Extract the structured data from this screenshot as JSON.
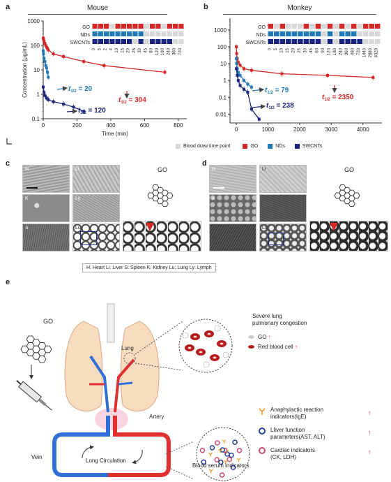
{
  "panels": {
    "a": {
      "label": "a",
      "title": "Mouse"
    },
    "b": {
      "label": "b",
      "title": "Monkey"
    },
    "c": {
      "label": "c"
    },
    "d": {
      "label": "d"
    },
    "e": {
      "label": "e"
    }
  },
  "chart_data": [
    {
      "type": "scatter",
      "panel": "a",
      "title": "Mouse",
      "xlabel": "Time (min)",
      "ylabel": "Concentration (μg/mL)",
      "xlim": [
        0,
        850
      ],
      "ylim": [
        0.1,
        1000
      ],
      "yscale": "log",
      "xticks": [
        "0",
        "200",
        "400",
        "600",
        "800"
      ],
      "yticks": [
        "0.1",
        "1",
        "10",
        "100",
        "1000"
      ],
      "series": [
        {
          "name": "GO",
          "color": "#d62728",
          "x": [
            0,
            2,
            5,
            10,
            15,
            20,
            25,
            30,
            60,
            120,
            240,
            360,
            720
          ],
          "y": [
            200,
            180,
            150,
            120,
            100,
            85,
            75,
            65,
            45,
            35,
            22,
            15,
            8
          ]
        },
        {
          "name": "NDs",
          "color": "#1f77b4",
          "x": [
            0,
            2,
            5,
            10,
            15,
            20,
            25,
            30
          ],
          "y": [
            60,
            45,
            30,
            22,
            15,
            12,
            8,
            5
          ]
        },
        {
          "name": "SWCNTs",
          "color": "#1a237e",
          "x": [
            0,
            5,
            10,
            20,
            30,
            60,
            120,
            180,
            240
          ],
          "y": [
            2,
            1.2,
            0.9,
            0.7,
            0.6,
            0.5,
            0.4,
            0.3,
            0.2
          ]
        }
      ],
      "annotations": [
        {
          "prefix": "t",
          "sub": "1/2",
          "text": " = 20",
          "color": "#1f77b4"
        },
        {
          "prefix": "t",
          "sub": "1/2",
          "text": " = 304",
          "color": "#d62728"
        },
        {
          "prefix": "t",
          "sub": "1/2",
          "text": " = 120",
          "color": "#1a237e"
        }
      ],
      "draw_times": [
        "0",
        "5",
        "2",
        "4",
        "10",
        "15",
        "20",
        "25",
        "30",
        "45",
        "60",
        "120",
        "180",
        "240",
        "360",
        "720"
      ],
      "rows": [
        "GO",
        "NDs",
        "SWCNTs"
      ]
    },
    {
      "type": "scatter",
      "panel": "b",
      "title": "Monkey",
      "xlim": [
        -200,
        4600
      ],
      "ylim": [
        0.003,
        5000
      ],
      "yscale": "log",
      "xticks": [
        "0",
        "1000",
        "2000",
        "3000",
        "4000"
      ],
      "yticks": [
        "0.01",
        "0.1",
        "1",
        "10",
        "100",
        "1000"
      ],
      "series": [
        {
          "name": "GO",
          "color": "#d62728",
          "x": [
            0,
            10,
            30,
            60,
            120,
            240,
            480,
            1440,
            2880,
            4320
          ],
          "y": [
            100,
            40,
            20,
            12,
            8,
            5,
            4,
            2.5,
            2,
            1.5
          ]
        },
        {
          "name": "NDs",
          "color": "#1f77b4",
          "x": [
            0,
            10,
            30,
            60,
            120,
            240,
            360,
            480
          ],
          "y": [
            20,
            10,
            5,
            3,
            2,
            1,
            0.6,
            0.4
          ]
        },
        {
          "name": "SWCNTs",
          "color": "#1a237e",
          "x": [
            0,
            30,
            60,
            120,
            240,
            360,
            480,
            720
          ],
          "y": [
            5,
            2,
            1,
            0.5,
            0.3,
            0.2,
            0.02,
            0.005
          ]
        }
      ],
      "annotations": [
        {
          "prefix": "t",
          "sub": "1/2",
          "text": " = 79",
          "color": "#1f77b4"
        },
        {
          "prefix": "t",
          "sub": "1/2",
          "text": " = 238",
          "color": "#1a237e"
        },
        {
          "prefix": "t",
          "sub": "1/2",
          "text": " = 2350",
          "color": "#d62728"
        }
      ],
      "draw_times": [
        "0",
        "5",
        "10",
        "15",
        "20",
        "25",
        "30",
        "45",
        "60",
        "90",
        "120",
        "180",
        "240",
        "360",
        "480",
        "720",
        "1440",
        "2880",
        "4320"
      ],
      "rows": [
        "GO",
        "NDs",
        "SWCNTs"
      ]
    }
  ],
  "legend": {
    "blood_draw": "Blood draw time point",
    "go": "GO",
    "nds": "NDs",
    "swcnts": "SWCNTs"
  },
  "micro_c": {
    "labels": [
      "H",
      "Li",
      "K",
      "Ly",
      "S",
      "Lu"
    ],
    "go_label": "GO"
  },
  "micro_d": {
    "labels": [
      "H",
      "Li",
      "K",
      "",
      "",
      "Lu"
    ],
    "go_label": "GO"
  },
  "organ_key": "H: Heart   Li: Liver   S: Spleen   K: Kidney   Lu: Lung   Ly: Lymph",
  "diagram": {
    "go_label": "GO",
    "lung_label": "Lung",
    "artery_label": "Artery",
    "vein_label": "Vein",
    "circulation_label": "Long Circulation",
    "lung_title": "Severe lung\npulmonary congestion",
    "lung_items": [
      {
        "text": "GO",
        "arrow": "↑"
      },
      {
        "text": "Red blood cell",
        "arrow": "↑"
      }
    ],
    "serum_items": [
      {
        "text": "Anaphylactic reaction\nindicators(IgE)",
        "arrow": "↑",
        "color": "#e8a020"
      },
      {
        "text": "Lliver function\nparameters(AST, ALT)",
        "arrow": "↑",
        "color": "#2a3f9d"
      },
      {
        "text": "Cardiac indicators\n(CK, LDH)",
        "arrow": "↑",
        "color": "#c84a6a"
      }
    ],
    "serum_title": "Blood serum indicators"
  }
}
